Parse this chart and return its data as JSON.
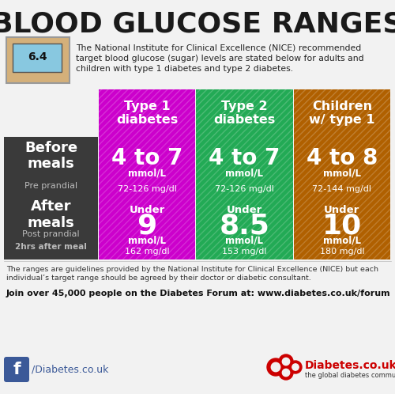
{
  "title": "BLOOD GLUCOSE RANGES",
  "bg_color": "#f2f2f2",
  "title_color": "#1a1a1a",
  "intro_text": "The National Institute for Clinical Excellence (NICE) recommended\ntarget blood glucose (sugar) levels are stated below for adults and\nchildren with type 1 diabetes and type 2 diabetes.",
  "col_headers": [
    "Type 1\ndiabetes",
    "Type 2\ndiabetes",
    "Children\nw/ type 1"
  ],
  "col_colors": [
    "#cc00cc",
    "#22aa55",
    "#b06000"
  ],
  "cells_row1": [
    {
      "main": "4 to 7",
      "unit": "mmol/L",
      "sub": "72-126 mg/dl"
    },
    {
      "main": "4 to 7",
      "unit": "mmol/L",
      "sub": "72-126 mg/dl"
    },
    {
      "main": "4 to 8",
      "unit": "mmol/L",
      "sub": "72-144 mg/dl"
    }
  ],
  "cells_row2": [
    {
      "prefix": "Under",
      "main": "9",
      "unit": "mmol/L",
      "sub": "162 mg/dl"
    },
    {
      "prefix": "Under",
      "main": "8.5",
      "unit": "mmol/L",
      "sub": "153 mg/dl"
    },
    {
      "prefix": "Under",
      "main": "10",
      "unit": "mmol/L",
      "sub": "180 mg/dl"
    }
  ],
  "row1_label1": "Before",
  "row1_label2": "meals",
  "row1_label3": "Pre prandial",
  "row2_label1": "After",
  "row2_label2": "meals",
  "row2_label3": "Post prandial",
  "row2_label4": "2hrs after meal",
  "row_header_bg": "#3a3a3a",
  "footer_note": "The ranges are guidelines provided by the National Institute for Clinical Excellence (NICE) but each\nindividual’s target range should be agreed by their doctor or diabetic consultant.",
  "footer_join": "Join over 45,000 people on the Diabetes Forum at: www.diabetes.co.uk/forum",
  "footer_fb_text": "/Diabetes.co.uk",
  "footer_brand": "Diabetes.co.uk",
  "footer_brand_sub": "the global diabetes community",
  "fb_color": "#3b5998",
  "brand_color": "#cc0000"
}
